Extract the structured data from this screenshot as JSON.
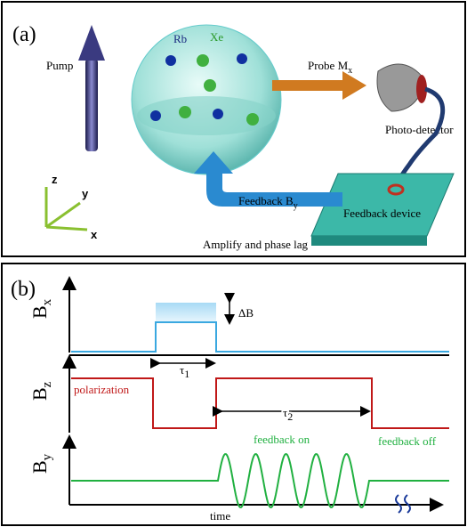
{
  "panel_a": {
    "label": "(a)",
    "pump": "Pump",
    "rb": "Rb",
    "xe": "Xe",
    "probe": {
      "text": "Probe M",
      "sub": "x"
    },
    "detector": "Photo-detector",
    "feedback": {
      "text": "Feedback B",
      "sub": "y"
    },
    "device": "Feedback device",
    "amplify": "Amplify and phase lag",
    "axes": {
      "z": "z",
      "y": "y",
      "x": "x"
    }
  },
  "panel_b": {
    "label": "(b)",
    "bx": {
      "text": "B",
      "sub": "x"
    },
    "bz": {
      "text": "B",
      "sub": "z"
    },
    "by": {
      "text": "B",
      "sub": "y"
    },
    "delta_b": "ΔB",
    "tau1": {
      "text": "τ",
      "sub": "1"
    },
    "tau2": {
      "text": "τ",
      "sub": "2"
    },
    "polarization": "polarization",
    "feedback_on": "feedback on",
    "feedback_off": "feedback off",
    "time": "time"
  }
}
